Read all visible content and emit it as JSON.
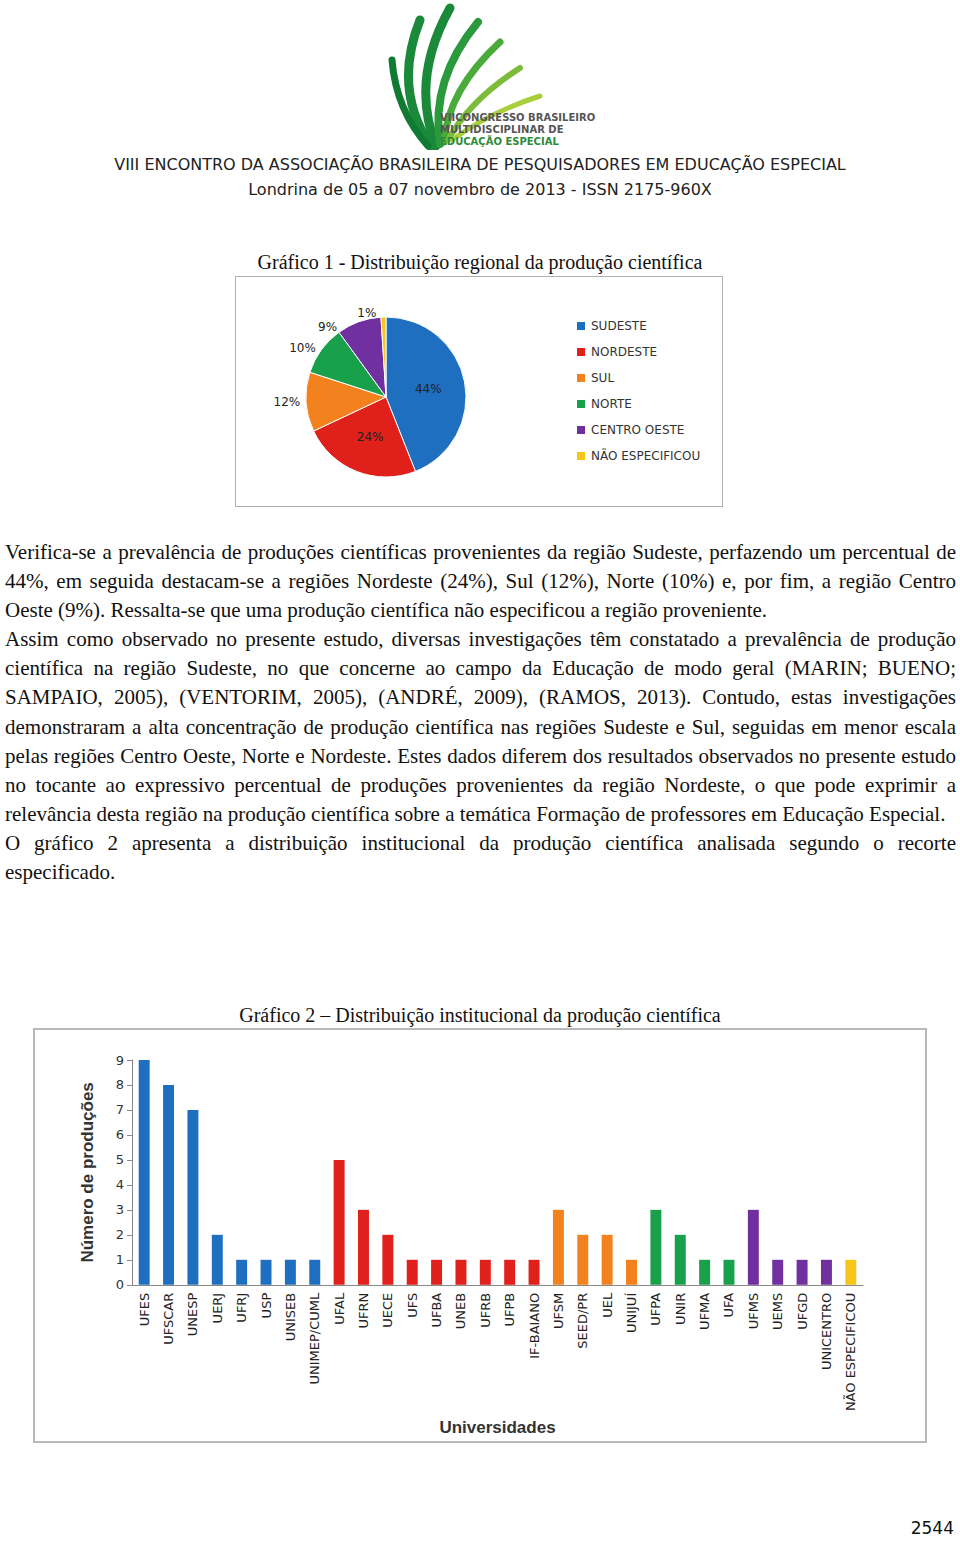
{
  "header": {
    "logo_text": [
      "VIICONGRESSO BRASILEIRO",
      "MULTIDISCIPLINAR DE",
      "EDUCAÇÃO ESPECIAL"
    ],
    "lines": [
      "VIII ENCONTRO DA ASSOCIAÇÃO BRASILEIRA DE PESQUISADORES EM EDUCAÇÃO ESPECIAL",
      "Londrina de 05 a 07 novembro de 2013 - ISSN 2175-960X"
    ]
  },
  "paragraphs": [
    "Verifica-se a prevalência de produções científicas provenientes da região Sudeste, perfazendo um percentual de 44%, em seguida destacam-se a regiões Nordeste (24%), Sul (12%), Norte (10%) e, por fim, a região Centro Oeste (9%). Ressalta-se que uma produção científica não especificou a região proveniente.",
    "Assim como observado no presente estudo, diversas investigações têm constatado a prevalência de produção científica na região Sudeste, no que concerne ao campo da Educação de modo geral (MARIN; BUENO; SAMPAIO, 2005), (VENTORIM, 2005), (ANDRÉ, 2009), (RAMOS, 2013). Contudo, estas investigações demonstraram a alta concentração de produção científica nas regiões Sudeste e Sul, seguidas em menor escala pelas regiões Centro Oeste, Norte e Nordeste. Estes dados diferem dos resultados observados no presente estudo no tocante ao expressivo percentual de produções provenientes da região Nordeste, o que pode exprimir a relevância desta região na produção científica sobre a temática Formação de professores em Educação Especial.",
    "O gráfico 2 apresenta a distribuição institucional da produção científica analisada segundo o recorte especificado."
  ],
  "page_number": "2544",
  "chart_data": [
    {
      "type": "pie",
      "title": "Gráfico 1 - Distribuição regional da produção científica",
      "categories": [
        "SUDESTE",
        "NORDESTE",
        "SUL",
        "NORTE",
        "CENTRO OESTE",
        "NÃO ESPECIFICOU"
      ],
      "values": [
        44,
        24,
        12,
        10,
        9,
        1
      ],
      "value_labels": [
        "44%",
        "24%",
        "12%",
        "10%",
        "9%",
        "1%"
      ],
      "colors": [
        "#1f6fc0",
        "#e0201b",
        "#f3811e",
        "#19a04b",
        "#7030a0",
        "#f5c518"
      ],
      "legend": "right",
      "data_labels": true
    },
    {
      "type": "bar",
      "title": "Gráfico 2 – Distribuição institucional da produção científica",
      "xlabel": "Universidades",
      "ylabel": "Número de produções",
      "categories": [
        "UFES",
        "UFSCAR",
        "UNESP",
        "UERJ",
        "UFRJ",
        "USP",
        "UNISEB",
        "UNIMEP/CUML",
        "UFAL",
        "UFRN",
        "UECE",
        "UFS",
        "UFBA",
        "UNEB",
        "UFRB",
        "UFPB",
        "IF-BAIANO",
        "UFSM",
        "SEED/PR",
        "UEL",
        "UNIJUÍ",
        "UFPA",
        "UNIR",
        "UFMA",
        "UFA",
        "UFMS",
        "UEMS",
        "UFGD",
        "UNICENTRO",
        "NÃO ESPECIFICOU"
      ],
      "values": [
        9,
        8,
        7,
        2,
        1,
        1,
        1,
        1,
        5,
        3,
        2,
        1,
        1,
        1,
        1,
        1,
        1,
        3,
        2,
        2,
        1,
        3,
        2,
        1,
        1,
        3,
        1,
        1,
        1,
        1
      ],
      "colors": [
        "#1f6fc0",
        "#1f6fc0",
        "#1f6fc0",
        "#1f6fc0",
        "#1f6fc0",
        "#1f6fc0",
        "#1f6fc0",
        "#1f6fc0",
        "#e0201b",
        "#e0201b",
        "#e0201b",
        "#e0201b",
        "#e0201b",
        "#e0201b",
        "#e0201b",
        "#e0201b",
        "#e0201b",
        "#f3811e",
        "#f3811e",
        "#f3811e",
        "#f3811e",
        "#19a04b",
        "#19a04b",
        "#19a04b",
        "#19a04b",
        "#7030a0",
        "#7030a0",
        "#7030a0",
        "#7030a0",
        "#f5c518"
      ],
      "ylim": [
        0,
        9
      ],
      "yticks": [
        0,
        1,
        2,
        3,
        4,
        5,
        6,
        7,
        8,
        9
      ],
      "grid": false
    }
  ]
}
